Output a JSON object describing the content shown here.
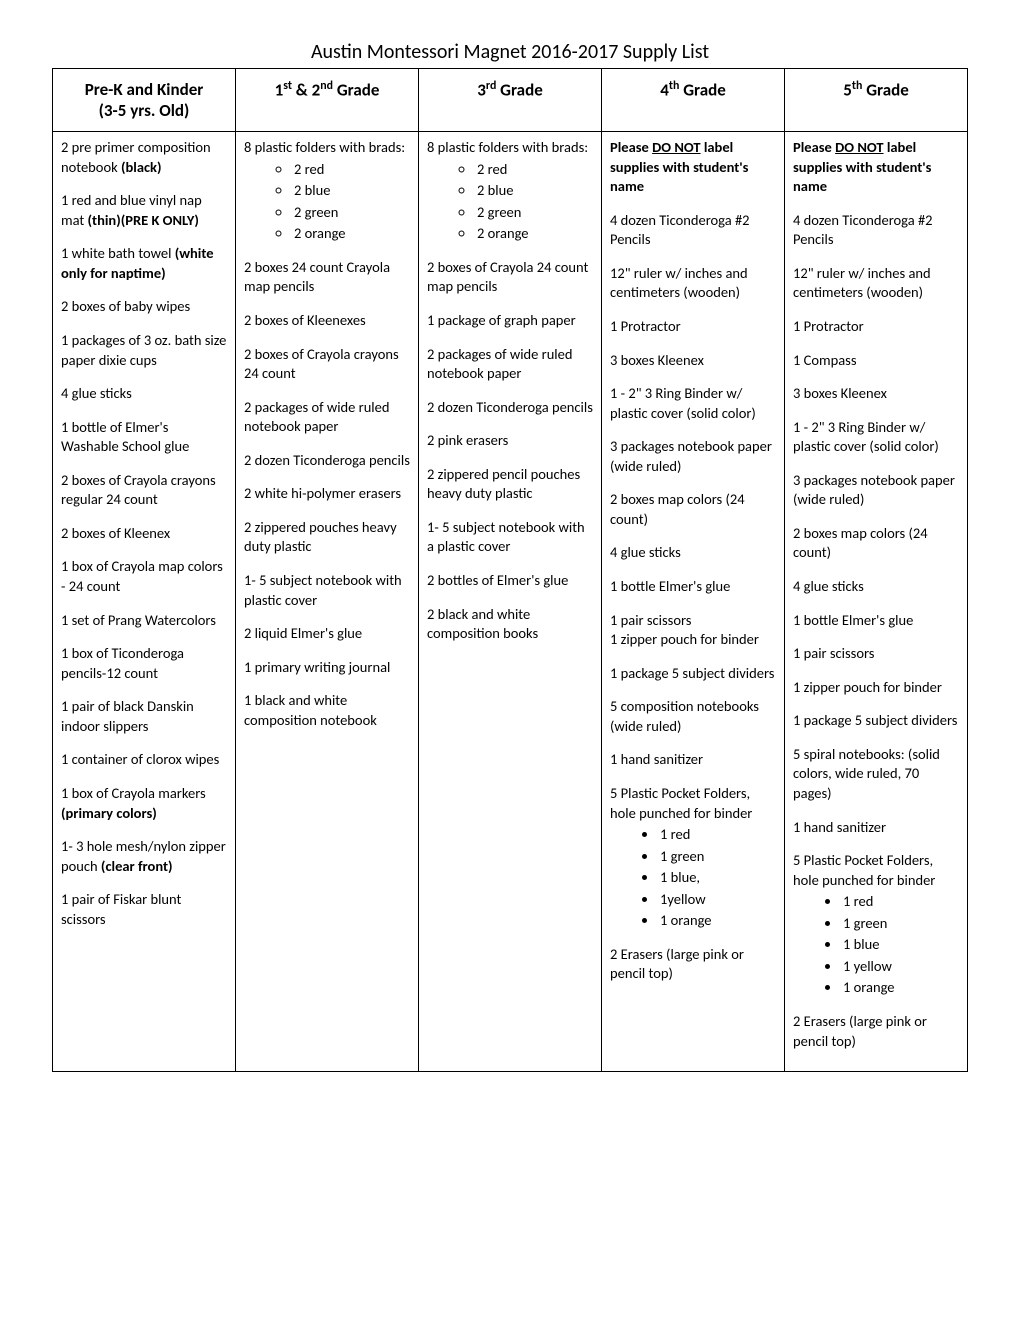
{
  "title": "Austin Montessori Magnet 2016-2017 Supply List",
  "headers": {
    "col1_line1": "Pre-K and Kinder",
    "col1_line2": "(3-5 yrs. Old)",
    "col2_pre": "1",
    "col2_sup1": "st",
    "col2_mid": " & 2",
    "col2_sup2": "nd",
    "col2_post": " Grade",
    "col3_pre": "3",
    "col3_sup": "rd",
    "col3_post": " Grade",
    "col4_pre": "4",
    "col4_sup": "th",
    "col4_post": " Grade",
    "col5_pre": "5",
    "col5_sup": "th",
    "col5_post": " Grade"
  },
  "col1": {
    "i1a": "2 pre primer composition notebook ",
    "i1b": "(black)",
    "i2a": "1 red and blue vinyl nap mat ",
    "i2b": "(thin)(PRE K ONLY)",
    "i3a": "1 white bath towel ",
    "i3b": "(white only for naptime)",
    "i4": "2 boxes of baby wipes",
    "i5": "1 packages of 3 oz. bath size paper dixie cups",
    "i6": "4 glue sticks",
    "i7": "1 bottle of Elmer's Washable School glue",
    "i8": "2 boxes of Crayola crayons regular 24 count",
    "i9": "2 boxes of Kleenex",
    "i10": "1 box of Crayola map colors - 24 count",
    "i11": "1 set of Prang Watercolors",
    "i12": "1 box of Ticonderoga pencils-12 count",
    "i13": " 1 pair of black Danskin indoor slippers",
    "i14": "1 container of clorox wipes",
    "i15a": "1 box of Crayola markers ",
    "i15b": "(primary colors)",
    "i16a": "1- 3 hole mesh/nylon zipper pouch ",
    "i16b": "(clear front)",
    "i17": "1 pair of Fiskar blunt scissors"
  },
  "col2": {
    "i1": "8 plastic folders with brads:",
    "sub": [
      "2 red",
      "2 blue",
      "2 green",
      "2 orange"
    ],
    "i2": "2 boxes 24 count Crayola map pencils",
    "i3": "2 boxes of Kleenexes",
    "i4": "2 boxes of Crayola crayons 24 count",
    "i5": "2 packages of wide ruled notebook paper",
    "i6": "2 dozen Ticonderoga pencils",
    "i7": "2 white hi-polymer erasers",
    "i8": "2 zippered pouches heavy duty plastic",
    "i9": "1- 5 subject notebook with plastic cover",
    "i10": "2 liquid Elmer's glue",
    "i11": "1 primary writing journal",
    "i12": "1 black and white composition notebook"
  },
  "col3": {
    "i1": "8 plastic folders with brads:",
    "sub": [
      "2 red",
      "2 blue",
      "2 green",
      "2 orange"
    ],
    "i2": "2 boxes of Crayola 24 count map pencils",
    "i3": "1 package of graph paper",
    "i4": "2 packages of wide ruled notebook paper",
    "i5": "2 dozen Ticonderoga pencils",
    "i6": "2 pink erasers",
    "i7": "2 zippered pencil pouches heavy duty plastic",
    "i8": "1- 5 subject notebook with a plastic cover",
    "i9": "2 bottles of Elmer's glue",
    "i10": "2 black and white composition books"
  },
  "col4": {
    "warn_a": "Please ",
    "warn_b": "DO NOT",
    "warn_c": " label supplies with student's name",
    "i1": "4 dozen Ticonderoga #2 Pencils",
    "i2": "12\" ruler w/ inches and centimeters (wooden)",
    "i3": "1 Protractor",
    "i4": "3 boxes Kleenex",
    "i5": "1 - 2\" 3 Ring Binder w/ plastic cover (solid color)",
    "i6": "3 packages notebook paper (wide ruled)",
    "i7": "2 boxes map colors (24 count)",
    "i8": "4 glue sticks",
    "i9": "1 bottle Elmer's glue",
    "i10": "1 pair scissors",
    "i11": "1 zipper pouch for binder",
    "i12": "1 package 5 subject dividers",
    "i13": "5 composition notebooks (wide ruled)",
    "i14": "1 hand sanitizer",
    "i15": "5 Plastic Pocket Folders, hole punched for binder",
    "sub": [
      "1 red",
      "1 green",
      "1 blue,",
      "1yellow",
      "1 orange"
    ],
    "i16": "2 Erasers (large pink or pencil top)"
  },
  "col5": {
    "warn_a": "Please ",
    "warn_b": "DO NOT",
    "warn_c": " label supplies with student's name",
    "i1": "4 dozen Ticonderoga #2 Pencils",
    "i2": "12\" ruler w/ inches and centimeters (wooden)",
    "i3": "1 Protractor",
    "i4": "1 Compass",
    "i5": "3 boxes Kleenex",
    "i6": "1 - 2\" 3 Ring Binder w/ plastic cover (solid color)",
    "i7": "3 packages notebook paper (wide ruled)",
    "i8": "2 boxes map colors (24 count)",
    "i9": "4 glue sticks",
    "i10": "1 bottle Elmer's glue",
    "i11": "1 pair scissors",
    "i12": "1 zipper pouch for binder",
    "i13": "1 package 5 subject dividers",
    "i14": "5 spiral notebooks: (solid colors, wide ruled, 70 pages)",
    "i15": "1 hand sanitizer",
    "i16": "5 Plastic Pocket Folders, hole punched for binder",
    "sub": [
      "1 red",
      "1 green",
      "1 blue",
      "1 yellow",
      "1 orange"
    ],
    "i17": "2 Erasers (large pink or pencil top)"
  }
}
